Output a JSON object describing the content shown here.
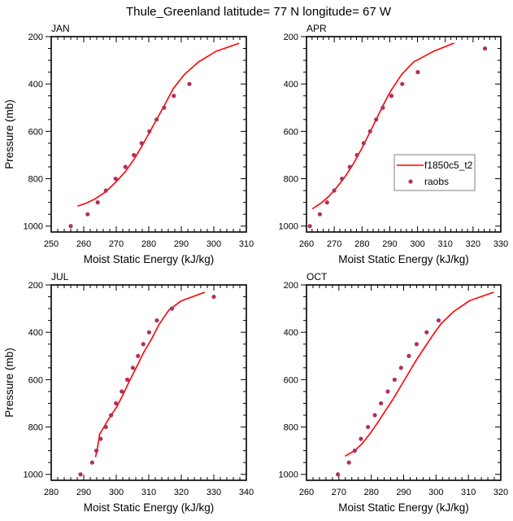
{
  "figure": {
    "title": "Thule_Greenland  latitude= 77 N longitude= 67 W"
  },
  "chart_data": [
    {
      "type": "line",
      "panel": "JAN",
      "title": "JAN",
      "xlabel": "Moist Static Energy (kJ/kg)",
      "ylabel": "Pressure (mb)",
      "xlim": [
        250,
        310
      ],
      "ylim": [
        200,
        1025
      ],
      "y_inverted": true,
      "xticks": [
        250,
        260,
        270,
        280,
        290,
        300,
        310
      ],
      "yticks": [
        200,
        400,
        600,
        800,
        1000
      ],
      "grid": false,
      "series": [
        {
          "name": "f1850c5_t2",
          "kind": "line",
          "color": "#ff0000",
          "points": [
            [
              258.1,
              916
            ],
            [
              260.8,
              903
            ],
            [
              263.5,
              885
            ],
            [
              266.8,
              855
            ],
            [
              269.8,
              815
            ],
            [
              272.8,
              770
            ],
            [
              275.6,
              715
            ],
            [
              278.2,
              655
            ],
            [
              280.4,
              600
            ],
            [
              282.6,
              545
            ],
            [
              284.8,
              490
            ],
            [
              287.5,
              420
            ],
            [
              291.0,
              359
            ],
            [
              295.3,
              307
            ],
            [
              300.7,
              262
            ],
            [
              307.8,
              228
            ]
          ]
        },
        {
          "name": "raobs",
          "kind": "scatter",
          "color": "#b03060",
          "points": [
            [
              256.0,
              1000
            ],
            [
              261.2,
              950
            ],
            [
              264.3,
              900
            ],
            [
              266.8,
              850
            ],
            [
              269.8,
              800
            ],
            [
              272.8,
              750
            ],
            [
              275.4,
              700
            ],
            [
              277.8,
              650
            ],
            [
              280.2,
              600
            ],
            [
              282.4,
              550
            ],
            [
              284.7,
              500
            ],
            [
              287.7,
              450
            ],
            [
              292.5,
              400
            ]
          ]
        }
      ]
    },
    {
      "type": "line",
      "panel": "APR",
      "title": "APR",
      "xlabel": "Moist Static Energy (kJ/kg)",
      "ylabel": "",
      "xlim": [
        260,
        330
      ],
      "ylim": [
        200,
        1025
      ],
      "y_inverted": true,
      "xticks": [
        260,
        270,
        280,
        290,
        300,
        310,
        320,
        330
      ],
      "yticks": [
        200,
        400,
        600,
        800,
        1000
      ],
      "grid": false,
      "legend": {
        "placement": "center-right",
        "entries": [
          {
            "label": "f1850c5_t2",
            "kind": "line",
            "color": "#ff0000"
          },
          {
            "label": "raobs",
            "kind": "marker",
            "color": "#b03060"
          }
        ]
      },
      "series": [
        {
          "name": "f1850c5_t2",
          "kind": "line",
          "color": "#ff0000",
          "points": [
            [
              262.1,
              927
            ],
            [
              265.0,
              905
            ],
            [
              268.0,
              875
            ],
            [
              271.0,
              835
            ],
            [
              274.0,
              790
            ],
            [
              277.0,
              735
            ],
            [
              280.0,
              670
            ],
            [
              282.8,
              605
            ],
            [
              285.3,
              545
            ],
            [
              287.6,
              490
            ],
            [
              290.3,
              430
            ],
            [
              294.2,
              361
            ],
            [
              298.6,
              307
            ],
            [
              305.6,
              263
            ],
            [
              313.2,
              227
            ]
          ]
        },
        {
          "name": "raobs",
          "kind": "scatter",
          "color": "#b03060",
          "points": [
            [
              261.2,
              1000
            ],
            [
              264.8,
              950
            ],
            [
              267.4,
              900
            ],
            [
              270.0,
              850
            ],
            [
              272.8,
              800
            ],
            [
              275.6,
              750
            ],
            [
              278.2,
              700
            ],
            [
              280.6,
              650
            ],
            [
              282.9,
              600
            ],
            [
              285.1,
              550
            ],
            [
              287.5,
              500
            ],
            [
              290.6,
              450
            ],
            [
              294.5,
              400
            ],
            [
              300.1,
              350
            ],
            [
              324.3,
              250
            ]
          ]
        }
      ]
    },
    {
      "type": "line",
      "panel": "JUL",
      "title": "JUL",
      "xlabel": "Moist Static Energy (kJ/kg)",
      "ylabel": "Pressure (mb)",
      "xlim": [
        280,
        340
      ],
      "ylim": [
        200,
        1025
      ],
      "y_inverted": true,
      "xticks": [
        280,
        290,
        300,
        310,
        320,
        330,
        340
      ],
      "yticks": [
        200,
        400,
        600,
        800,
        1000
      ],
      "grid": false,
      "series": [
        {
          "name": "f1850c5_t2",
          "kind": "line",
          "color": "#ff0000",
          "points": [
            [
              293.6,
              927
            ],
            [
              294.1,
              900
            ],
            [
              294.9,
              830
            ],
            [
              297.5,
              770
            ],
            [
              300.1,
              716
            ],
            [
              302.2,
              660
            ],
            [
              304.2,
              601
            ],
            [
              306.3,
              545
            ],
            [
              308.4,
              486
            ],
            [
              310.8,
              430
            ],
            [
              313.2,
              366
            ],
            [
              316.2,
              306
            ],
            [
              319.9,
              268
            ],
            [
              327.2,
              231
            ]
          ]
        },
        {
          "name": "raobs",
          "kind": "scatter",
          "color": "#b03060",
          "points": [
            [
              289.0,
              1000
            ],
            [
              292.6,
              950
            ],
            [
              293.9,
              900
            ],
            [
              295.2,
              850
            ],
            [
              296.8,
              800
            ],
            [
              298.4,
              750
            ],
            [
              299.9,
              700
            ],
            [
              301.7,
              650
            ],
            [
              303.4,
              600
            ],
            [
              305.1,
              550
            ],
            [
              306.7,
              500
            ],
            [
              308.3,
              450
            ],
            [
              310.1,
              400
            ],
            [
              312.5,
              350
            ],
            [
              317.1,
              300
            ],
            [
              330.0,
              250
            ]
          ]
        }
      ]
    },
    {
      "type": "line",
      "panel": "OCT",
      "title": "OCT",
      "xlabel": "Moist Static Energy (kJ/kg)",
      "ylabel": "",
      "xlim": [
        260,
        320
      ],
      "ylim": [
        200,
        1025
      ],
      "y_inverted": true,
      "xticks": [
        260,
        270,
        280,
        290,
        300,
        310,
        320
      ],
      "yticks": [
        200,
        400,
        600,
        800,
        1000
      ],
      "grid": false,
      "series": [
        {
          "name": "f1850c5_t2",
          "kind": "line",
          "color": "#ff0000",
          "points": [
            [
              271.9,
              923
            ],
            [
              274.9,
              900
            ],
            [
              277.2,
              870
            ],
            [
              279.5,
              830
            ],
            [
              281.8,
              785
            ],
            [
              284.2,
              735
            ],
            [
              286.6,
              685
            ],
            [
              289.0,
              630
            ],
            [
              291.4,
              575
            ],
            [
              293.8,
              520
            ],
            [
              296.2,
              470
            ],
            [
              298.7,
              418
            ],
            [
              301.6,
              363
            ],
            [
              305.4,
              313
            ],
            [
              310.4,
              266
            ],
            [
              317.8,
              231
            ]
          ]
        },
        {
          "name": "raobs",
          "kind": "scatter",
          "color": "#b03060",
          "points": [
            [
              269.7,
              1000
            ],
            [
              273.1,
              950
            ],
            [
              274.9,
              900
            ],
            [
              276.8,
              850
            ],
            [
              279.0,
              800
            ],
            [
              281.1,
              750
            ],
            [
              283.0,
              700
            ],
            [
              285.1,
              650
            ],
            [
              287.2,
              600
            ],
            [
              289.2,
              550
            ],
            [
              291.6,
              500
            ],
            [
              294.0,
              450
            ],
            [
              297.1,
              400
            ],
            [
              300.8,
              350
            ]
          ]
        }
      ]
    }
  ]
}
